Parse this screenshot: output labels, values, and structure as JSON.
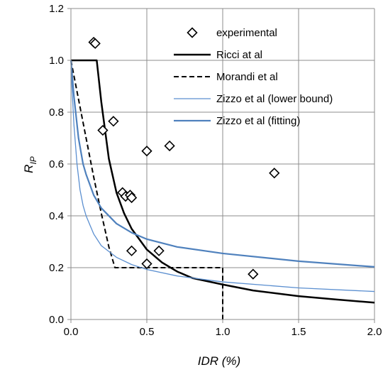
{
  "chart_data": {
    "type": "scatter",
    "xlabel": "IDR (%)",
    "ylabel": "RIP",
    "xlim": [
      0,
      2.0
    ],
    "ylim": [
      0,
      1.2
    ],
    "x_ticks": [
      "0.0",
      "0.5",
      "1.0",
      "1.5",
      "2.0"
    ],
    "y_ticks": [
      "0.0",
      "0.2",
      "0.4",
      "0.6",
      "0.8",
      "1.0",
      "1.2"
    ],
    "grid": true,
    "legend_position": "top-right",
    "series": [
      {
        "name": "experimental",
        "kind": "markers",
        "marker": "diamond",
        "color": "#000000",
        "points": [
          [
            0.15,
            1.07
          ],
          [
            0.16,
            1.065
          ],
          [
            0.21,
            0.73
          ],
          [
            0.28,
            0.765
          ],
          [
            0.34,
            0.49
          ],
          [
            0.36,
            0.475
          ],
          [
            0.39,
            0.48
          ],
          [
            0.4,
            0.47
          ],
          [
            0.5,
            0.65
          ],
          [
            0.65,
            0.67
          ],
          [
            0.4,
            0.265
          ],
          [
            0.58,
            0.265
          ],
          [
            0.5,
            0.215
          ],
          [
            1.2,
            0.175
          ],
          [
            1.34,
            0.565
          ]
        ]
      },
      {
        "name": "Ricci at al",
        "kind": "line",
        "color": "#000000",
        "dash": "solid",
        "width": 2.5,
        "points": [
          [
            0.0,
            1.0
          ],
          [
            0.17,
            1.0
          ],
          [
            0.2,
            0.84
          ],
          [
            0.25,
            0.62
          ],
          [
            0.3,
            0.49
          ],
          [
            0.35,
            0.41
          ],
          [
            0.4,
            0.35
          ],
          [
            0.5,
            0.27
          ],
          [
            0.6,
            0.22
          ],
          [
            0.7,
            0.185
          ],
          [
            0.8,
            0.16
          ],
          [
            1.0,
            0.135
          ],
          [
            1.2,
            0.112
          ],
          [
            1.5,
            0.09
          ],
          [
            1.75,
            0.077
          ],
          [
            2.0,
            0.065
          ]
        ]
      },
      {
        "name": "Morandi et al",
        "kind": "line",
        "color": "#000000",
        "dash": "dashed",
        "width": 2,
        "points": [
          [
            0.0,
            1.0
          ],
          [
            0.05,
            0.85
          ],
          [
            0.1,
            0.7
          ],
          [
            0.15,
            0.55
          ],
          [
            0.2,
            0.41
          ],
          [
            0.25,
            0.28
          ],
          [
            0.29,
            0.2
          ],
          [
            1.0,
            0.2
          ],
          [
            1.0,
            0.0
          ]
        ]
      },
      {
        "name": "Zizzo et al (lower bound)",
        "kind": "line",
        "color": "#5b8fd0",
        "dash": "solid",
        "width": 1.3,
        "points": [
          [
            0.0,
            0.97
          ],
          [
            0.02,
            0.75
          ],
          [
            0.04,
            0.6
          ],
          [
            0.06,
            0.5
          ],
          [
            0.08,
            0.44
          ],
          [
            0.1,
            0.4
          ],
          [
            0.15,
            0.33
          ],
          [
            0.2,
            0.285
          ],
          [
            0.3,
            0.24
          ],
          [
            0.4,
            0.212
          ],
          [
            0.5,
            0.193
          ],
          [
            0.7,
            0.168
          ],
          [
            1.0,
            0.145
          ],
          [
            1.5,
            0.122
          ],
          [
            2.0,
            0.108
          ]
        ]
      },
      {
        "name": "Zizzo et al (fitting)",
        "kind": "line",
        "color": "#4f81bd",
        "dash": "solid",
        "width": 2.2,
        "points": [
          [
            0.0,
            1.0
          ],
          [
            0.02,
            0.86
          ],
          [
            0.05,
            0.7
          ],
          [
            0.08,
            0.6
          ],
          [
            0.1,
            0.56
          ],
          [
            0.15,
            0.48
          ],
          [
            0.2,
            0.43
          ],
          [
            0.3,
            0.37
          ],
          [
            0.4,
            0.335
          ],
          [
            0.5,
            0.31
          ],
          [
            0.7,
            0.28
          ],
          [
            1.0,
            0.255
          ],
          [
            1.5,
            0.225
          ],
          [
            2.0,
            0.203
          ]
        ]
      }
    ]
  }
}
